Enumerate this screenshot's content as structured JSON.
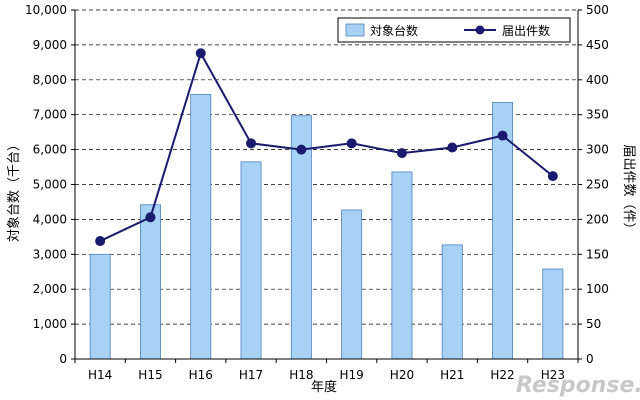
{
  "chart_data": {
    "type": "bar",
    "categories": [
      "H14",
      "H15",
      "H16",
      "H17",
      "H18",
      "H19",
      "H20",
      "H21",
      "H22",
      "H23"
    ],
    "series": [
      {
        "name": "対象台数",
        "type": "bar",
        "axis": "left",
        "color": "#a8d2f5",
        "values": [
          3000,
          4420,
          7580,
          5650,
          6970,
          4270,
          5360,
          3270,
          7350,
          2580
        ]
      },
      {
        "name": "届出件数",
        "type": "line",
        "axis": "right",
        "color": "#1a1a6e",
        "values": [
          169,
          203,
          438,
          309,
          300,
          309,
          295,
          303,
          320,
          262
        ]
      }
    ],
    "xlabel": "年度",
    "ylabel_left": "対象台数（千台）",
    "ylabel_right": "届出件数（件）",
    "ylim_left": [
      0,
      10000
    ],
    "ylim_right": [
      0,
      500
    ],
    "yticks_left": [
      "0",
      "1,000",
      "2,000",
      "3,000",
      "4,000",
      "5,000",
      "6,000",
      "7,000",
      "8,000",
      "9,000",
      "10,000"
    ],
    "yticks_right": [
      "0",
      "50",
      "100",
      "150",
      "200",
      "250",
      "300",
      "350",
      "400",
      "450",
      "500"
    ],
    "grid": true,
    "legend_position": "top-right"
  },
  "watermark": "Response."
}
